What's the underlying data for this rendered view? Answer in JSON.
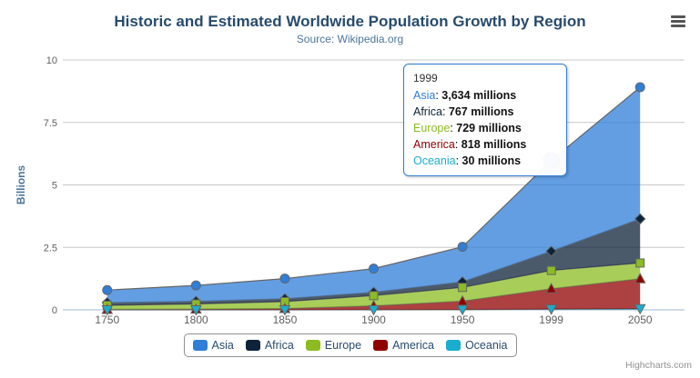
{
  "header": {
    "title": "Historic and Estimated Worldwide Population Growth by Region",
    "subtitle": "Source: Wikipedia.org"
  },
  "chart_data": {
    "type": "area",
    "stacking": "normal",
    "categories": [
      "1750",
      "1800",
      "1850",
      "1900",
      "1950",
      "1999",
      "2050"
    ],
    "values_unit": "millions",
    "series": [
      {
        "name": "Asia",
        "color": "#2f7ed8",
        "marker": "circle",
        "values": [
          502,
          635,
          809,
          947,
          1402,
          3634,
          5268
        ]
      },
      {
        "name": "Africa",
        "color": "#0d233a",
        "marker": "diamond",
        "values": [
          106,
          107,
          111,
          133,
          221,
          767,
          1766
        ]
      },
      {
        "name": "Europe",
        "color": "#8bbc21",
        "marker": "square",
        "values": [
          163,
          203,
          276,
          408,
          547,
          729,
          628
        ]
      },
      {
        "name": "America",
        "color": "#910000",
        "marker": "triangle",
        "values": [
          18,
          31,
          54,
          156,
          339,
          818,
          1201
        ]
      },
      {
        "name": "Oceania",
        "color": "#1aadce",
        "marker": "triangle-down",
        "values": [
          2,
          2,
          2,
          6,
          13,
          30,
          46
        ]
      }
    ],
    "ylabel": "Billions",
    "ylim": [
      0,
      10
    ],
    "yticks": [
      "0",
      "2.5",
      "5",
      "7.5",
      "10"
    ],
    "grid": true,
    "legend_position": "bottom",
    "hover_point": {
      "series": "Asia",
      "category": "1999",
      "category_index": 5
    }
  },
  "tooltip": {
    "header": "1999",
    "rows": [
      {
        "name": "Asia",
        "value": "3,634 millions"
      },
      {
        "name": "Africa",
        "value": "767 millions"
      },
      {
        "name": "Europe",
        "value": "729 millions"
      },
      {
        "name": "America",
        "value": "818 millions"
      },
      {
        "name": "Oceania",
        "value": "30 millions"
      }
    ]
  },
  "credits": {
    "label": "Highcharts.com"
  },
  "colors": {
    "line": "#666666",
    "grid": "#c8c8c8",
    "axis_line": "#C0D0E0",
    "axis_label": "#606060",
    "axis_title": "#4d759e",
    "title_text": "#274b6d",
    "legend_text": "#274b6d",
    "area_opacity": "0.75"
  }
}
